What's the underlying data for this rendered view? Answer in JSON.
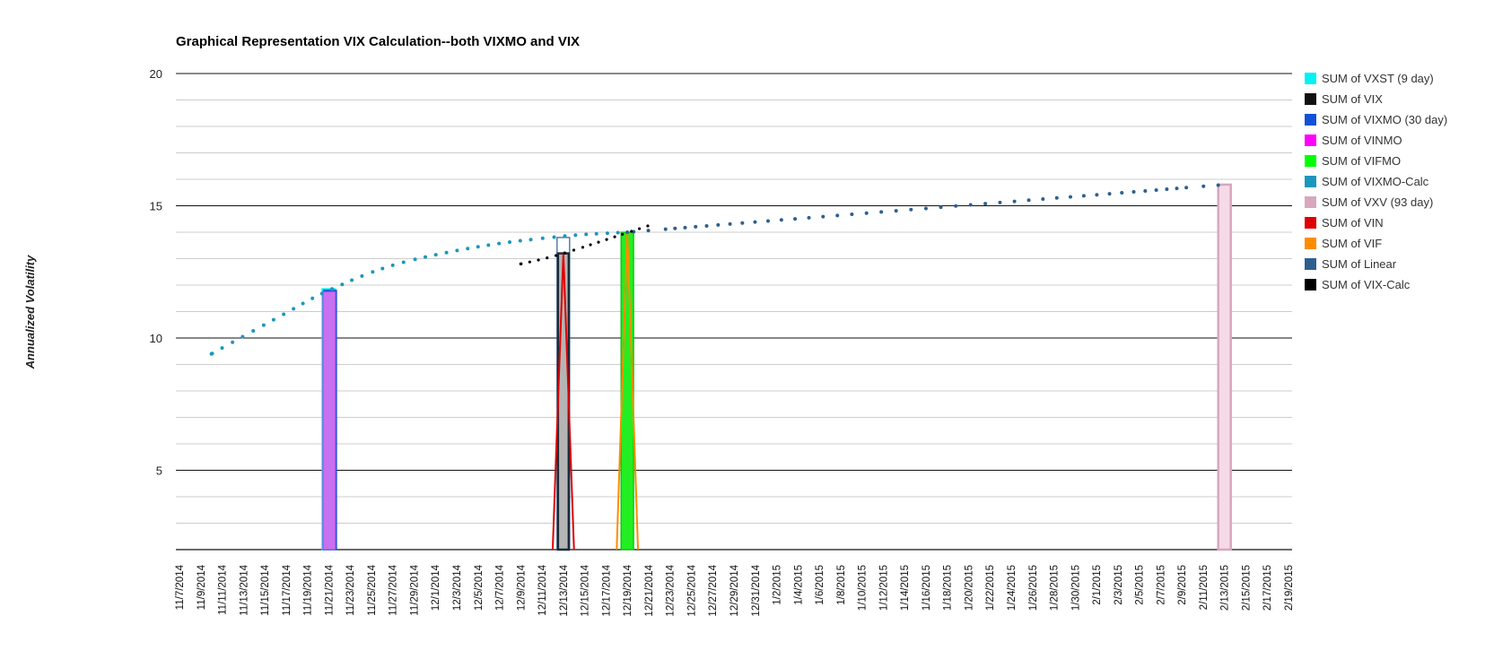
{
  "chart_data": {
    "type": "bar",
    "title": "Graphical Representation VIX Calculation--both VIXMO and VIX",
    "ylabel": "Annualized Volatility",
    "xlabel": "",
    "ylim": [
      2,
      20
    ],
    "yticks": [
      5,
      10,
      15,
      20
    ],
    "grid": true,
    "legend_position": "right",
    "categories": [
      "11/7/2014",
      "11/9/2014",
      "11/11/2014",
      "11/13/2014",
      "11/15/2014",
      "11/17/2014",
      "11/19/2014",
      "11/21/2014",
      "11/23/2014",
      "11/25/2014",
      "11/27/2014",
      "11/29/2014",
      "12/1/2014",
      "12/3/2014",
      "12/5/2014",
      "12/7/2014",
      "12/9/2014",
      "12/11/2014",
      "12/13/2014",
      "12/15/2014",
      "12/17/2014",
      "12/19/2014",
      "12/21/2014",
      "12/23/2014",
      "12/25/2014",
      "12/27/2014",
      "12/29/2014",
      "12/31/2014",
      "1/2/2015",
      "1/4/2015",
      "1/6/2015",
      "1/8/2015",
      "1/10/2015",
      "1/12/2015",
      "1/14/2015",
      "1/16/2015",
      "1/18/2015",
      "1/20/2015",
      "1/22/2015",
      "1/24/2015",
      "1/26/2015",
      "1/28/2015",
      "1/30/2015",
      "2/1/2015",
      "2/3/2015",
      "2/5/2015",
      "2/7/2015",
      "2/9/2015",
      "2/11/2015",
      "2/13/2015",
      "2/15/2015",
      "2/17/2015",
      "2/19/2015"
    ],
    "series": [
      {
        "name": "SUM of VXST (9 day)",
        "color": "#00f2f2",
        "points": [
          {
            "day": 14,
            "value": 11.85
          }
        ]
      },
      {
        "name": "SUM of VIX",
        "color": "#111111",
        "points": [
          {
            "day": 36,
            "value": 13.8
          }
        ]
      },
      {
        "name": "SUM of VIXMO (30 day)",
        "color": "#1150d8",
        "points": [
          {
            "day": 14,
            "value": 11.8
          }
        ]
      },
      {
        "name": "SUM of VINMO",
        "color": "#ff00ff",
        "points": [
          {
            "day": 14,
            "value": 11.75
          }
        ]
      },
      {
        "name": "SUM of VIFMO",
        "color": "#00ff00",
        "points": [
          {
            "day": 42,
            "value": 14.0
          }
        ]
      },
      {
        "name": "SUM of VIXMO-Calc",
        "color": "#1b97bd",
        "points": [
          {
            "day": 3,
            "value": 9.4
          },
          {
            "day": 10,
            "value": 10.95
          },
          {
            "day": 14,
            "value": 11.8
          },
          {
            "day": 20,
            "value": 12.75
          },
          {
            "day": 28,
            "value": 13.45
          },
          {
            "day": 36,
            "value": 13.85
          },
          {
            "day": 42,
            "value": 14.0
          }
        ]
      },
      {
        "name": "SUM of VXV (93 day)",
        "color": "#d8a7bc",
        "points": [
          {
            "day": 98,
            "value": 15.8
          }
        ]
      },
      {
        "name": "SUM of VIN",
        "color": "#e00000",
        "points": [
          {
            "day": 35,
            "value": 2.0
          },
          {
            "day": 36,
            "value": 13.2
          },
          {
            "day": 37,
            "value": 2.0
          }
        ]
      },
      {
        "name": "SUM of VIF",
        "color": "#ff8c00",
        "points": [
          {
            "day": 41,
            "value": 2.0
          },
          {
            "day": 42,
            "value": 14.0
          },
          {
            "day": 43,
            "value": 2.0
          }
        ]
      },
      {
        "name": "SUM of Linear",
        "color": "#2e5f8f",
        "points": [
          {
            "day": 42,
            "value": 14.0
          },
          {
            "day": 98,
            "value": 15.8
          }
        ]
      },
      {
        "name": "SUM of VIX-Calc",
        "color": "#000000",
        "points": [
          {
            "day": 32,
            "value": 12.8
          },
          {
            "day": 36,
            "value": 13.2
          },
          {
            "day": 44,
            "value": 14.25
          }
        ]
      }
    ]
  }
}
